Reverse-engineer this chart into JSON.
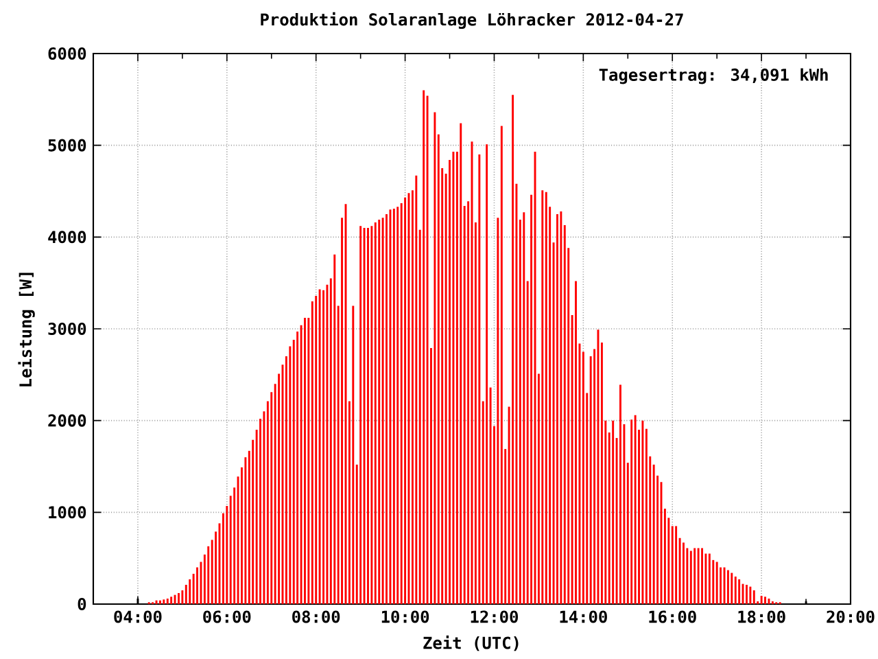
{
  "chart_data": {
    "type": "bar",
    "title": "Produktion Solaranlage Löhracker 2012-04-27",
    "xlabel": "Zeit (UTC)",
    "ylabel": "Leistung [W]",
    "annotations": [
      "Tagesertrag: 34,091 kWh"
    ],
    "xlim": [
      3,
      20
    ],
    "ylim": [
      0,
      6000
    ],
    "xticks": [
      {
        "value": 4,
        "label": "04:00"
      },
      {
        "value": 6,
        "label": "06:00"
      },
      {
        "value": 8,
        "label": "08:00"
      },
      {
        "value": 10,
        "label": "10:00"
      },
      {
        "value": 12,
        "label": "12:00"
      },
      {
        "value": 14,
        "label": "14:00"
      },
      {
        "value": 16,
        "label": "16:00"
      },
      {
        "value": 18,
        "label": "18:00"
      },
      {
        "value": 20,
        "label": "20:00"
      }
    ],
    "yticks": [
      0,
      1000,
      2000,
      3000,
      4000,
      5000,
      6000
    ],
    "grid": true,
    "x": [
      4,
      4.25,
      4.333,
      4.417,
      4.5,
      4.583,
      4.667,
      4.75,
      4.833,
      4.917,
      5,
      5.083,
      5.167,
      5.25,
      5.333,
      5.417,
      5.5,
      5.583,
      5.667,
      5.75,
      5.833,
      5.917,
      6,
      6.083,
      6.167,
      6.25,
      6.333,
      6.417,
      6.5,
      6.583,
      6.667,
      6.75,
      6.833,
      6.917,
      7,
      7.083,
      7.167,
      7.25,
      7.333,
      7.417,
      7.5,
      7.583,
      7.667,
      7.75,
      7.833,
      7.917,
      8,
      8.083,
      8.167,
      8.25,
      8.333,
      8.417,
      8.5,
      8.583,
      8.667,
      8.75,
      8.833,
      8.917,
      9,
      9.083,
      9.167,
      9.25,
      9.333,
      9.417,
      9.5,
      9.583,
      9.667,
      9.75,
      9.833,
      9.917,
      10,
      10.083,
      10.167,
      10.25,
      10.333,
      10.417,
      10.5,
      10.583,
      10.667,
      10.75,
      10.833,
      10.917,
      11,
      11.083,
      11.167,
      11.25,
      11.333,
      11.417,
      11.5,
      11.583,
      11.667,
      11.75,
      11.833,
      11.917,
      12,
      12.083,
      12.167,
      12.25,
      12.333,
      12.417,
      12.5,
      12.583,
      12.667,
      12.75,
      12.833,
      12.917,
      13,
      13.083,
      13.167,
      13.25,
      13.333,
      13.417,
      13.5,
      13.583,
      13.667,
      13.75,
      13.833,
      13.917,
      14,
      14.083,
      14.167,
      14.25,
      14.333,
      14.417,
      14.5,
      14.583,
      14.667,
      14.75,
      14.833,
      14.917,
      15,
      15.083,
      15.167,
      15.25,
      15.333,
      15.417,
      15.5,
      15.583,
      15.667,
      15.75,
      15.833,
      15.917,
      16,
      16.083,
      16.167,
      16.25,
      16.333,
      16.417,
      16.5,
      16.583,
      16.667,
      16.75,
      16.833,
      16.917,
      17,
      17.083,
      17.167,
      17.25,
      17.333,
      17.417,
      17.5,
      17.583,
      17.667,
      17.75,
      17.833,
      17.917,
      18,
      18.083,
      18.167,
      18.25,
      18.333,
      18.417,
      19
    ],
    "values": [
      60,
      20,
      20,
      40,
      40,
      50,
      60,
      80,
      100,
      120,
      150,
      210,
      270,
      330,
      400,
      460,
      540,
      630,
      700,
      790,
      880,
      990,
      1070,
      1180,
      1270,
      1390,
      1490,
      1600,
      1670,
      1790,
      1900,
      2020,
      2100,
      2210,
      2310,
      2400,
      2510,
      2610,
      2700,
      2810,
      2880,
      2970,
      3040,
      3120,
      3120,
      3300,
      3360,
      3430,
      3420,
      3480,
      3550,
      3810,
      3250,
      4210,
      4360,
      2210,
      3250,
      1520,
      4120,
      4100,
      4100,
      4120,
      4160,
      4190,
      4210,
      4250,
      4300,
      4310,
      4330,
      4370,
      4430,
      4480,
      4510,
      4670,
      4080,
      5600,
      5540,
      2790,
      5360,
      5120,
      4750,
      4690,
      4840,
      4930,
      4930,
      5240,
      4340,
      4390,
      5040,
      4160,
      4900,
      2210,
      5010,
      2360,
      1940,
      4210,
      5210,
      1690,
      2150,
      5550,
      4580,
      4190,
      4270,
      3520,
      4460,
      4930,
      2510,
      4510,
      4490,
      4330,
      3940,
      4250,
      4280,
      4130,
      3880,
      3150,
      3520,
      2840,
      2750,
      2300,
      2700,
      2780,
      2990,
      2850,
      2000,
      1870,
      2000,
      1810,
      2390,
      1960,
      1540,
      2010,
      2060,
      1900,
      2000,
      1910,
      1610,
      1520,
      1400,
      1330,
      1040,
      940,
      850,
      850,
      720,
      670,
      610,
      580,
      610,
      610,
      610,
      550,
      550,
      480,
      460,
      400,
      400,
      370,
      340,
      300,
      270,
      220,
      210,
      190,
      150,
      30,
      90,
      80,
      60,
      30,
      20,
      20,
      30
    ],
    "colors": [
      "#000000",
      "#ff0000",
      "#ff0000",
      "#ff0000",
      "#ff0000",
      "#ff0000",
      "#ff0000",
      "#ff0000",
      "#ff0000",
      "#ff0000",
      "#ff0000",
      "#ff0000",
      "#ff0000",
      "#ff0000",
      "#ff0000",
      "#ff0000",
      "#ff0000",
      "#ff0000",
      "#ff0000",
      "#ff0000",
      "#ff0000",
      "#ff0000",
      "#ff0000",
      "#ff0000",
      "#ff0000",
      "#ff0000",
      "#ff0000",
      "#ff0000",
      "#ff0000",
      "#ff0000",
      "#ff0000",
      "#ff0000",
      "#ff0000",
      "#ff0000",
      "#ff0000",
      "#ff0000",
      "#ff0000",
      "#ff0000",
      "#ff0000",
      "#ff0000",
      "#ff0000",
      "#ff0000",
      "#ff0000",
      "#ff0000",
      "#ff0000",
      "#ff0000",
      "#ff0000",
      "#ff0000",
      "#ff0000",
      "#ff0000",
      "#ff0000",
      "#ff0000",
      "#ff0000",
      "#ff0000",
      "#ff0000",
      "#ff0000",
      "#ff0000",
      "#ff0000",
      "#ff0000",
      "#ff0000",
      "#ff0000",
      "#ff0000",
      "#ff0000",
      "#ff0000",
      "#ff0000",
      "#ff0000",
      "#ff0000",
      "#ff0000",
      "#ff0000",
      "#ff0000",
      "#ff0000",
      "#ff0000",
      "#ff0000",
      "#ff0000",
      "#ff0000",
      "#ff0000",
      "#ff0000",
      "#ff0000",
      "#ff0000",
      "#ff0000",
      "#ff0000",
      "#ff0000",
      "#ff0000",
      "#ff0000",
      "#ff0000",
      "#ff0000",
      "#ff0000",
      "#ff0000",
      "#ff0000",
      "#ff0000",
      "#ff0000",
      "#ff0000",
      "#ff0000",
      "#ff0000",
      "#ff0000",
      "#ff0000",
      "#ff0000",
      "#ff0000",
      "#ff0000",
      "#ff0000",
      "#ff0000",
      "#ff0000",
      "#ff0000",
      "#ff0000",
      "#ff0000",
      "#ff0000",
      "#ff0000",
      "#ff0000",
      "#ff0000",
      "#ff0000",
      "#ff0000",
      "#ff0000",
      "#ff0000",
      "#ff0000",
      "#ff0000",
      "#ff0000",
      "#ff0000",
      "#ff0000",
      "#ff0000",
      "#ff0000",
      "#ff0000",
      "#ff0000",
      "#ff0000",
      "#ff0000",
      "#ff0000",
      "#ff0000",
      "#ff0000",
      "#ff0000",
      "#ff0000",
      "#ff0000",
      "#ff0000",
      "#ff0000",
      "#ff0000",
      "#ff0000",
      "#ff0000",
      "#ff0000",
      "#ff0000",
      "#ff0000",
      "#ff0000",
      "#ff0000",
      "#ff0000",
      "#ff0000",
      "#ff0000",
      "#ff0000",
      "#ff0000",
      "#ff0000",
      "#ff0000",
      "#ff0000",
      "#ff0000",
      "#ff0000",
      "#ff0000",
      "#ff0000",
      "#ff0000",
      "#ff0000",
      "#ff0000",
      "#ff0000",
      "#ff0000",
      "#ff0000",
      "#ff0000",
      "#ff0000",
      "#ff0000",
      "#ff0000",
      "#ff0000",
      "#ff0000",
      "#ff0000",
      "#ff0000",
      "#ff0000",
      "#ff0000",
      "#ff0000",
      "#ff0000",
      "#ff0000",
      "#ff0000",
      "#000000"
    ]
  }
}
